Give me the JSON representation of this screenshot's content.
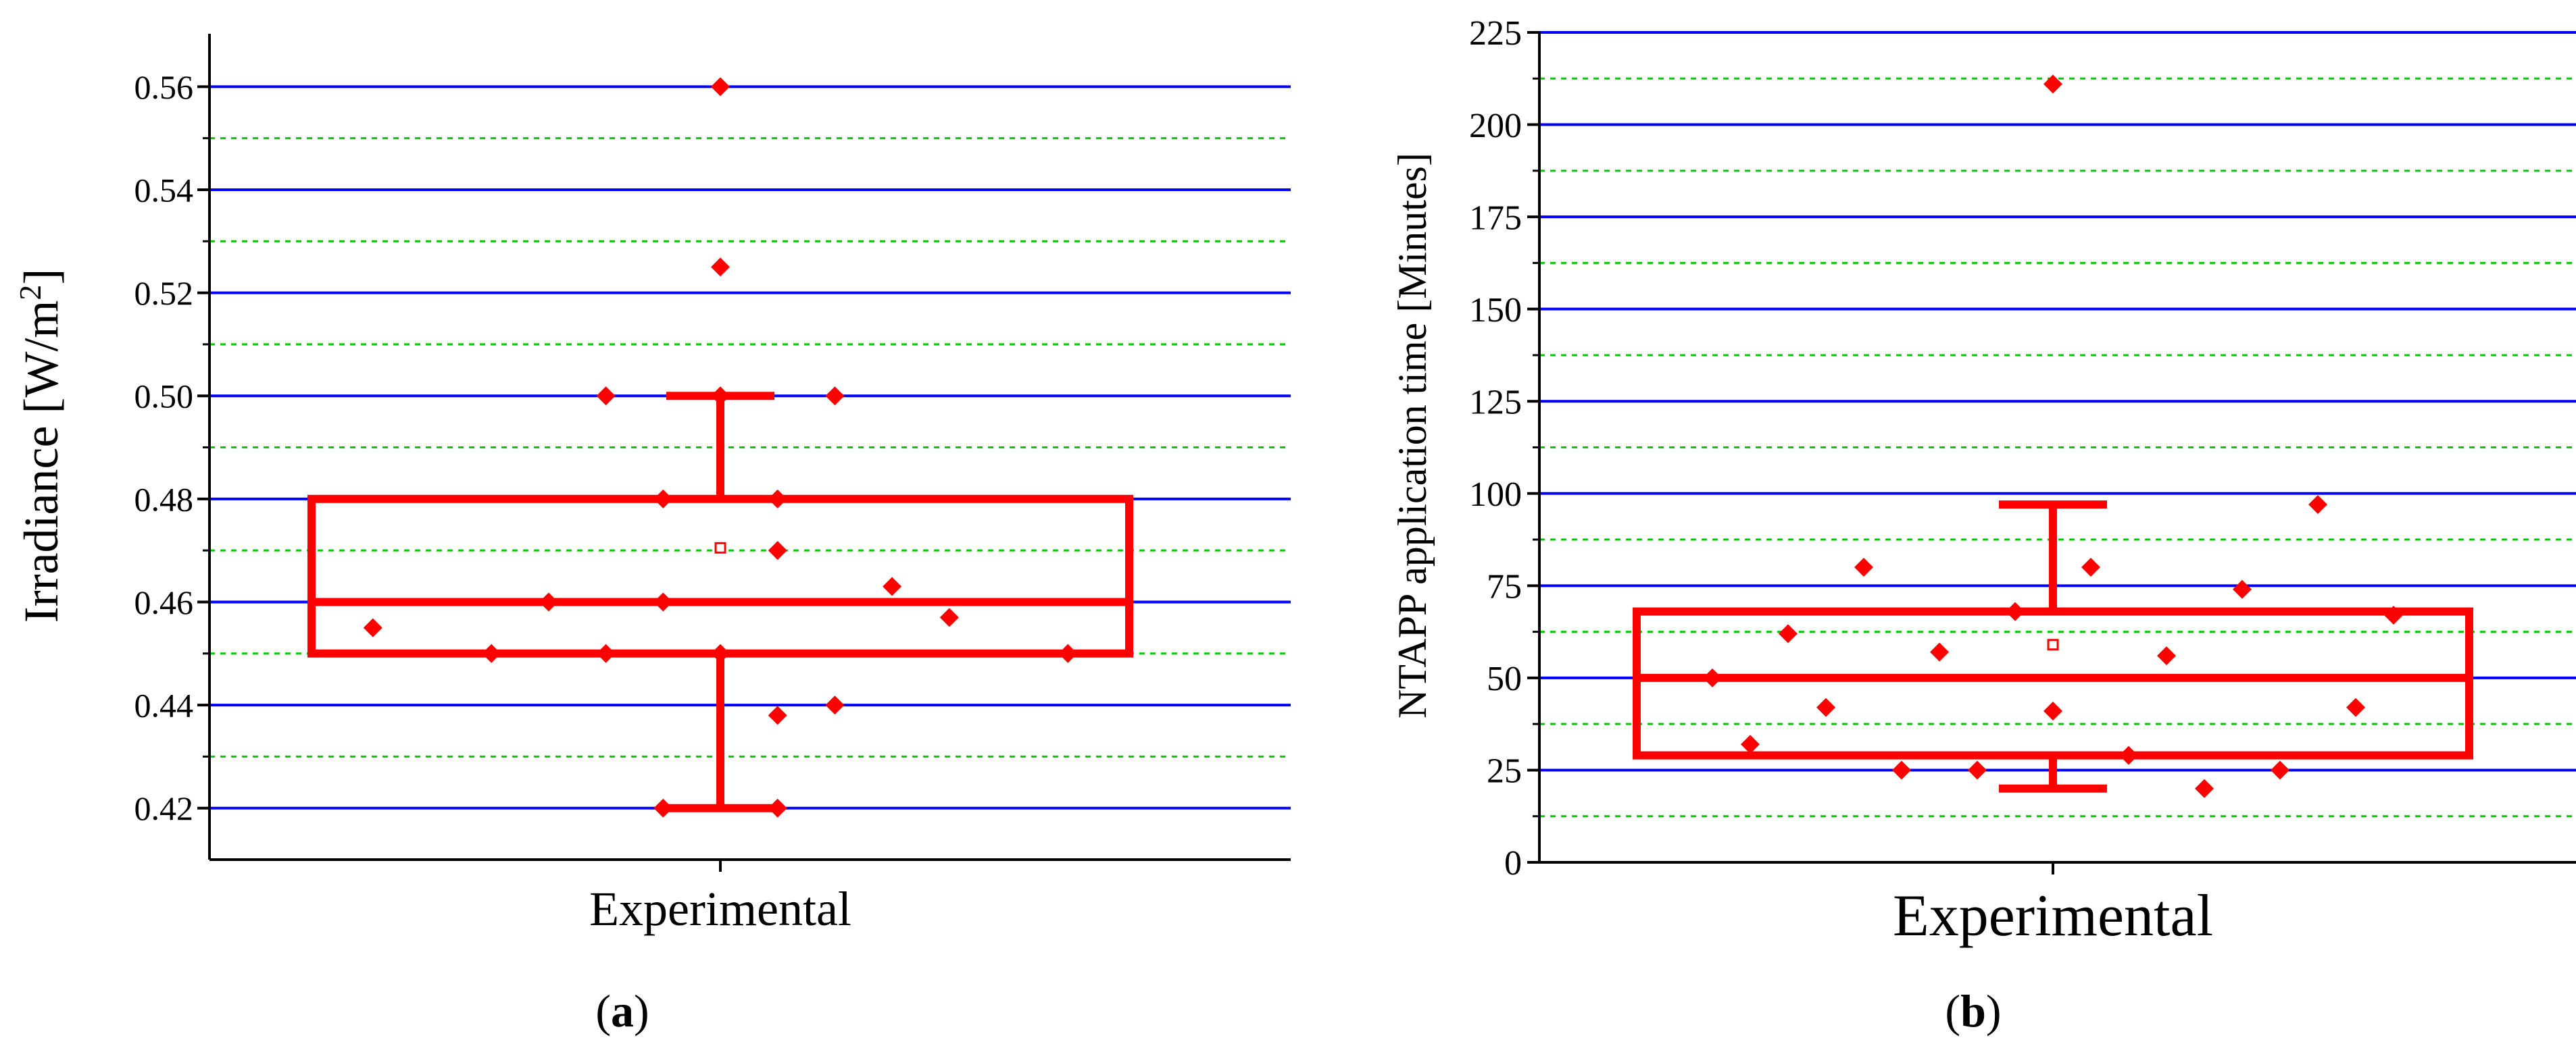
{
  "panels": [
    {
      "chart_data": {
        "type": "box",
        "panel_label": "a",
        "category": "Experimental",
        "ylabel": "Irradiance [W/m",
        "ylabel_sup": "2",
        "ylabel_close": "]",
        "ylim": [
          0.41,
          0.57
        ],
        "yticks": [
          0.42,
          0.44,
          0.46,
          0.48,
          0.5,
          0.52,
          0.54,
          0.56
        ],
        "ytick_labels": [
          "0.42",
          "0.44",
          "0.46",
          "0.48",
          "0.50",
          "0.52",
          "0.54",
          "0.56"
        ],
        "minor_grid": [
          0.43,
          0.45,
          0.47,
          0.49,
          0.51,
          0.53,
          0.55
        ],
        "box": {
          "q1": 0.45,
          "median": 0.46,
          "q3": 0.48,
          "whisker_low": 0.42,
          "whisker_high": 0.5,
          "mean": 0.4705
        },
        "points": [
          {
            "x": -0.85,
            "y": 0.455
          },
          {
            "x": -0.56,
            "y": 0.45
          },
          {
            "x": -0.42,
            "y": 0.46
          },
          {
            "x": -0.28,
            "y": 0.45
          },
          {
            "x": -0.28,
            "y": 0.5
          },
          {
            "x": -0.14,
            "y": 0.48
          },
          {
            "x": -0.14,
            "y": 0.46
          },
          {
            "x": -0.14,
            "y": 0.42
          },
          {
            "x": 0.0,
            "y": 0.56
          },
          {
            "x": 0.0,
            "y": 0.525
          },
          {
            "x": 0.0,
            "y": 0.5
          },
          {
            "x": 0.0,
            "y": 0.45
          },
          {
            "x": 0.14,
            "y": 0.48
          },
          {
            "x": 0.14,
            "y": 0.47
          },
          {
            "x": 0.14,
            "y": 0.438
          },
          {
            "x": 0.14,
            "y": 0.42
          },
          {
            "x": 0.28,
            "y": 0.5
          },
          {
            "x": 0.28,
            "y": 0.44
          },
          {
            "x": 0.42,
            "y": 0.463
          },
          {
            "x": 0.56,
            "y": 0.457
          },
          {
            "x": 0.85,
            "y": 0.45
          }
        ],
        "grid": true,
        "colors": {
          "box": "#ff0000",
          "points": "#ff0000",
          "major_grid": "#0000ff",
          "minor_grid": "#00cc00"
        }
      }
    },
    {
      "chart_data": {
        "type": "box",
        "panel_label": "b",
        "category": "Experimental",
        "ylabel": "NTAPP application time [Minutes]",
        "ylim": [
          0,
          225
        ],
        "yticks": [
          0,
          25,
          50,
          75,
          100,
          125,
          150,
          175,
          200,
          225
        ],
        "ytick_labels": [
          "0",
          "25",
          "50",
          "75",
          "100",
          "125",
          "150",
          "175",
          "200",
          "225"
        ],
        "minor_grid": [
          12.5,
          37.5,
          62.5,
          87.5,
          112.5,
          137.5,
          162.5,
          187.5,
          212.5
        ],
        "box": {
          "q1": 29,
          "median": 50,
          "q3": 68,
          "whisker_low": 20,
          "whisker_high": 97,
          "mean": 59
        },
        "points": [
          {
            "x": -0.9,
            "y": 50
          },
          {
            "x": -0.8,
            "y": 32
          },
          {
            "x": -0.7,
            "y": 62
          },
          {
            "x": -0.6,
            "y": 42
          },
          {
            "x": -0.5,
            "y": 80
          },
          {
            "x": -0.4,
            "y": 25
          },
          {
            "x": -0.3,
            "y": 57
          },
          {
            "x": -0.2,
            "y": 25
          },
          {
            "x": -0.1,
            "y": 68
          },
          {
            "x": 0.0,
            "y": 211
          },
          {
            "x": 0.0,
            "y": 41
          },
          {
            "x": 0.1,
            "y": 80
          },
          {
            "x": 0.2,
            "y": 29
          },
          {
            "x": 0.3,
            "y": 56
          },
          {
            "x": 0.4,
            "y": 20
          },
          {
            "x": 0.5,
            "y": 74
          },
          {
            "x": 0.6,
            "y": 25
          },
          {
            "x": 0.7,
            "y": 97
          },
          {
            "x": 0.8,
            "y": 42
          },
          {
            "x": 0.9,
            "y": 67
          }
        ],
        "grid": true,
        "colors": {
          "box": "#ff0000",
          "points": "#ff0000",
          "major_grid": "#0000ff",
          "minor_grid": "#00cc00"
        }
      }
    }
  ]
}
